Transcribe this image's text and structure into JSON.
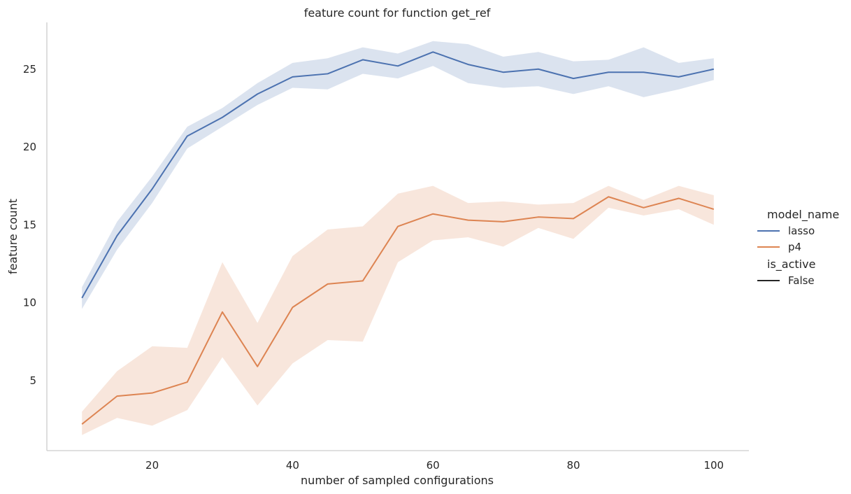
{
  "chart_data": {
    "type": "line",
    "title": "feature count for function get_ref",
    "xlabel": "number of sampled configurations",
    "ylabel": "feature count",
    "xlim": [
      5,
      105
    ],
    "ylim": [
      0.5,
      28
    ],
    "xticks": [
      20,
      40,
      60,
      80,
      100
    ],
    "yticks": [
      5,
      10,
      15,
      20,
      25
    ],
    "grid": false,
    "legend": {
      "placement": "right",
      "hue_title": "model_name",
      "style_title": "is_active",
      "style_entries": [
        {
          "label": "False",
          "color": "#262626"
        }
      ]
    },
    "x": [
      10,
      15,
      20,
      25,
      30,
      35,
      40,
      45,
      50,
      55,
      60,
      65,
      70,
      75,
      80,
      85,
      90,
      95,
      100
    ],
    "series": [
      {
        "name": "lasso",
        "color": "#4c72b0",
        "values": [
          10.3,
          14.3,
          17.3,
          20.7,
          21.9,
          23.4,
          24.5,
          24.7,
          25.6,
          25.2,
          26.1,
          25.3,
          24.8,
          25.0,
          24.4,
          24.8,
          24.8,
          24.5,
          25.0
        ],
        "ci_low": [
          9.6,
          13.4,
          16.4,
          19.9,
          21.3,
          22.7,
          23.8,
          23.7,
          24.7,
          24.4,
          25.2,
          24.1,
          23.8,
          23.9,
          23.4,
          23.9,
          23.2,
          23.7,
          24.3
        ],
        "ci_high": [
          11.0,
          15.2,
          18.1,
          21.3,
          22.5,
          24.1,
          25.4,
          25.7,
          26.4,
          26.0,
          26.8,
          26.6,
          25.8,
          26.1,
          25.5,
          25.6,
          26.4,
          25.4,
          25.7
        ]
      },
      {
        "name": "p4",
        "color": "#dd8452",
        "values": [
          2.2,
          4.0,
          4.2,
          4.9,
          9.4,
          5.9,
          9.7,
          11.2,
          11.4,
          14.9,
          15.7,
          15.3,
          15.2,
          15.5,
          15.4,
          16.8,
          16.1,
          16.7,
          16.0
        ],
        "ci_low": [
          1.5,
          2.6,
          2.1,
          3.1,
          6.5,
          3.4,
          6.1,
          7.6,
          7.5,
          12.6,
          14.0,
          14.2,
          13.6,
          14.8,
          14.1,
          16.1,
          15.6,
          16.0,
          15.0
        ],
        "ci_high": [
          3.0,
          5.6,
          7.2,
          7.1,
          12.6,
          8.7,
          13.0,
          14.7,
          14.9,
          17.0,
          17.5,
          16.4,
          16.5,
          16.3,
          16.4,
          17.5,
          16.6,
          17.5,
          16.9
        ]
      }
    ]
  }
}
